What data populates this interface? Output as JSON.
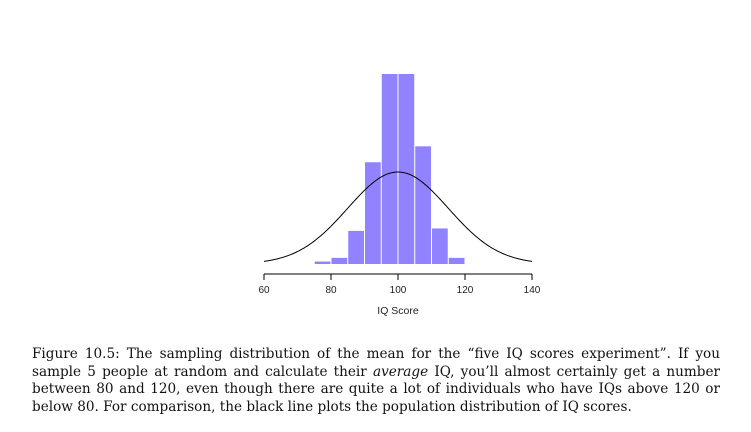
{
  "chart_data": {
    "type": "bar",
    "title": "",
    "xlabel": "IQ Score",
    "ylabel": "",
    "xlim": [
      60,
      140
    ],
    "xticks": [
      "60",
      "80",
      "100",
      "120",
      "140"
    ],
    "bin_width": 5,
    "bins": [
      {
        "x0": 75,
        "x1": 80,
        "value": 0.002
      },
      {
        "x0": 80,
        "x1": 85,
        "value": 0.005
      },
      {
        "x0": 85,
        "x1": 90,
        "value": 0.027
      },
      {
        "x0": 90,
        "x1": 95,
        "value": 0.083
      },
      {
        "x0": 95,
        "x1": 100,
        "value": 0.155
      },
      {
        "x0": 100,
        "x1": 105,
        "value": 0.155
      },
      {
        "x0": 105,
        "x1": 110,
        "value": 0.096
      },
      {
        "x0": 110,
        "x1": 115,
        "value": 0.029
      },
      {
        "x0": 115,
        "x1": 120,
        "value": 0.005
      }
    ],
    "curve": {
      "type": "normal",
      "mean": 100,
      "sd": 15
    },
    "bar_color": "#9182ff",
    "line_color": "#000000",
    "grid": false,
    "legend": "none"
  },
  "caption": {
    "p1": "Figure 10.5: The sampling distribution of the mean for the “five IQ scores experiment”. If you sample 5 people at random and calculate their ",
    "emph": "average",
    "p2": " IQ, you’ll almost certainly get a number between 80 and 120, even though there are quite a lot of individuals who have IQs above 120 or below 80. For comparison, the black line plots the population distribution of IQ scores."
  }
}
